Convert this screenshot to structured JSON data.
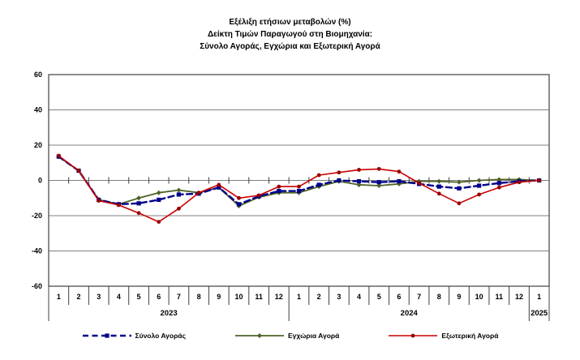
{
  "title_lines": [
    "Εξέλιξη ετήσιων μεταβολών (%)",
    "Δείκτη Τιμών Παραγωγού στη Βιομηχανία:",
    "Σύνολο Αγοράς, Εγχώρια και Εξωτερική Αγορά"
  ],
  "chart_data": {
    "type": "line",
    "x_month_labels": [
      "1",
      "2",
      "3",
      "4",
      "5",
      "6",
      "7",
      "8",
      "9",
      "10",
      "11",
      "12",
      "1",
      "2",
      "3",
      "4",
      "5",
      "6",
      "7",
      "8",
      "9",
      "10",
      "11",
      "12",
      "1"
    ],
    "x_year_groups": [
      {
        "label": "2023",
        "start": 0,
        "span": 12
      },
      {
        "label": "2024",
        "start": 12,
        "span": 12
      },
      {
        "label": "2025",
        "start": 24,
        "span": 1
      }
    ],
    "ylim": [
      -60,
      60
    ],
    "yticks": [
      60,
      40,
      20,
      0,
      -20,
      -40,
      -60
    ],
    "grid": "horizontal",
    "grid_color": "#808080",
    "border_color": "#404040",
    "legend_position": "bottom",
    "draw_order": [
      1,
      0,
      2
    ],
    "series": [
      {
        "name": "Σύνολο Αγοράς",
        "color": "#00008B",
        "marker_color": "#00008B",
        "style": "dashed",
        "marker": "square",
        "width": 2.4,
        "values": [
          13.5,
          5.5,
          -11,
          -13.5,
          -13,
          -11,
          -8,
          -7.5,
          -4,
          -13.5,
          -9,
          -6,
          -6,
          -2.5,
          0,
          -0.5,
          -1,
          -0.5,
          -2,
          -3.5,
          -4.5,
          -3,
          -1.5,
          -0.5,
          0
        ]
      },
      {
        "name": "Εγχώρια Αγορά",
        "color": "#4F6228",
        "marker_color": "#4F6228",
        "style": "solid",
        "marker": "diamond",
        "width": 1.8,
        "values": [
          13.5,
          5.5,
          -11,
          -13.5,
          -10,
          -7,
          -5.5,
          -7,
          -4,
          -14.5,
          -9.5,
          -7,
          -7,
          -3.5,
          -0.5,
          -2.5,
          -3,
          -2,
          -0.5,
          -0.5,
          -1,
          0,
          0.5,
          0.5,
          0
        ]
      },
      {
        "name": "Εξωτερική Αγορά",
        "color": "#CC0000",
        "marker_color": "#990000",
        "style": "solid",
        "marker": "circle",
        "width": 1.6,
        "values": [
          14,
          5.5,
          -11.5,
          -14,
          -18.5,
          -23.5,
          -16,
          -7,
          -2.5,
          -10,
          -8.5,
          -3.5,
          -3.5,
          3,
          4.5,
          6,
          6.5,
          5,
          -1.5,
          -7.5,
          -13,
          -8,
          -4,
          -1,
          0
        ]
      }
    ]
  }
}
